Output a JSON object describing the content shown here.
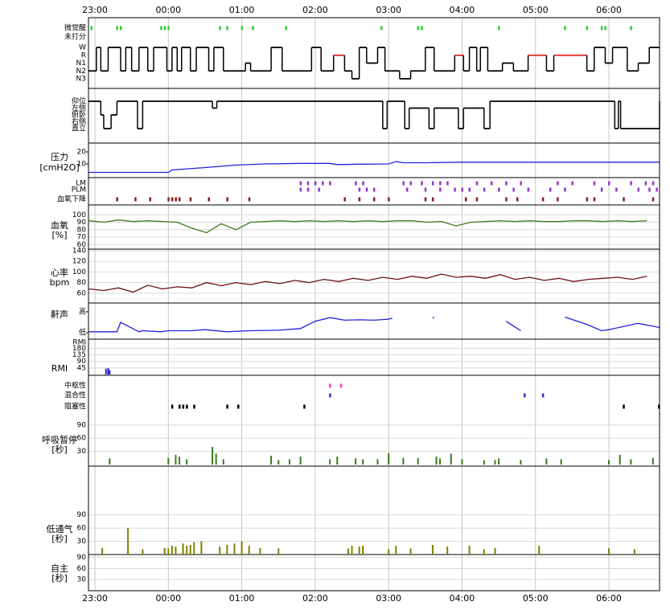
{
  "chart_data": [
    {
      "type": "hypnogram",
      "xlim": [
        -0.088,
        7.69
      ],
      "xticks": [
        {
          "value": 0,
          "label": "23:00"
        },
        {
          "value": 1,
          "label": "00:00"
        },
        {
          "value": 2,
          "label": "01:00"
        },
        {
          "value": 3,
          "label": "02:00"
        },
        {
          "value": 4,
          "label": "03:00"
        },
        {
          "value": 5,
          "label": "04:00"
        },
        {
          "value": 6,
          "label": "05:00"
        },
        {
          "value": 7,
          "label": "06:00"
        }
      ],
      "event_rows": [
        {
          "name": "微觉醒",
          "color": "#33cc33",
          "x": [
            -0.05,
            0.3,
            0.35,
            0.9,
            0.95,
            1.0,
            1.7,
            1.8,
            2.0,
            2.15,
            2.6,
            3.9,
            4.4,
            4.45,
            5.5,
            6.4,
            6.7,
            6.9,
            6.95,
            7.3
          ]
        },
        {
          "name": "未打分",
          "color": "#33cc33",
          "x": []
        }
      ],
      "levels": [
        "W",
        "R",
        "N1",
        "N2",
        "N3"
      ],
      "level_colors": [
        "#000000",
        "#dd2222",
        "#000000",
        "#000000",
        "#000000"
      ],
      "x": [
        -0.088,
        0.02,
        0.08,
        0.18,
        0.35,
        0.42,
        0.5,
        0.6,
        0.72,
        0.8,
        0.98,
        1.05,
        1.12,
        1.18,
        1.3,
        1.38,
        1.55,
        1.62,
        1.75,
        2.05,
        2.12,
        2.4,
        2.55,
        2.95,
        3.08,
        3.25,
        3.4,
        3.5,
        3.6,
        3.7,
        3.85,
        3.95,
        4.15,
        4.3,
        4.5,
        4.62,
        4.9,
        5.02,
        5.1,
        5.2,
        5.25,
        5.35,
        5.55,
        5.7,
        5.9,
        6.15,
        6.25,
        6.7,
        6.8,
        6.95,
        7.05,
        7.25,
        7.4,
        7.55
      ],
      "values": [
        3,
        0,
        3,
        0,
        3,
        0,
        3,
        0,
        3,
        0,
        3,
        0,
        3,
        0,
        3,
        0,
        3,
        0,
        3,
        2,
        3,
        0,
        3,
        0,
        3,
        1,
        3,
        4,
        0,
        2,
        0,
        3,
        4,
        3,
        0,
        3,
        1,
        3,
        0,
        3,
        0,
        3,
        2,
        3,
        1,
        3,
        1,
        3,
        0,
        2,
        0,
        3,
        2,
        0
      ]
    },
    {
      "type": "step",
      "levels": [
        "仰位",
        "左侧",
        "俯卧",
        "右侧",
        "直立"
      ],
      "level_colors": [
        "#000000",
        "#000000",
        "#000000",
        "#000000",
        "#000000"
      ],
      "x": [
        -0.088,
        0.08,
        0.12,
        0.22,
        0.3,
        0.58,
        0.65,
        1.6,
        1.66,
        3.92,
        3.98,
        4.22,
        4.28,
        4.55,
        4.62,
        4.95,
        5.02,
        5.3,
        5.38,
        7.08,
        7.13,
        7.16,
        7.69
      ],
      "values": [
        0,
        2,
        4,
        2,
        0,
        4,
        0,
        1,
        0,
        4,
        0,
        4,
        1,
        4,
        1,
        4,
        1,
        4,
        0,
        4,
        0,
        4,
        0
      ]
    },
    {
      "type": "line",
      "label_lines": [
        "压力",
        "[cmH2O]"
      ],
      "color": "#2222dd",
      "ylim": [
        0,
        26
      ],
      "yticks": [
        20,
        10
      ],
      "grid": false,
      "x": [
        -0.088,
        1.0,
        1.05,
        1.5,
        1.9,
        2.3,
        2.8,
        3.2,
        3.3,
        3.6,
        4.0,
        4.1,
        4.2,
        4.5,
        5.0,
        6.0,
        7.69
      ],
      "values": [
        3,
        3,
        5,
        7,
        9,
        10,
        10.5,
        10.5,
        9.5,
        9.8,
        10,
        12,
        11,
        11,
        11.5,
        11.5,
        11.5
      ]
    },
    {
      "type": "events",
      "event_rows": [
        {
          "name": "LM",
          "color": "#9933cc",
          "x": [
            2.8,
            2.9,
            3.0,
            3.1,
            3.2,
            3.55,
            3.65,
            4.2,
            4.3,
            4.45,
            4.6,
            4.7,
            4.8,
            5.2,
            5.4,
            5.6,
            5.8,
            6.3,
            6.5,
            6.8,
            7.0,
            7.3,
            7.5,
            7.6
          ]
        },
        {
          "name": "PLM",
          "color": "#9933cc",
          "x": [
            2.8,
            2.9,
            3.05,
            3.6,
            3.7,
            3.8,
            4.25,
            4.5,
            4.7,
            4.9,
            5.0,
            5.1,
            5.3,
            5.5,
            5.7,
            5.9,
            6.2,
            6.4,
            6.9,
            7.1,
            7.4,
            7.55,
            7.65
          ]
        },
        {
          "name": "血氧下降",
          "color": "#8b1a1a",
          "x": [
            0.3,
            0.55,
            0.75,
            1.0,
            1.05,
            1.1,
            1.15,
            1.3,
            1.55,
            1.8,
            2.1,
            3.4,
            3.6,
            3.8,
            4.0,
            4.5,
            4.6,
            5.05,
            5.2,
            5.6,
            5.75,
            6.1,
            6.3,
            6.7,
            6.8,
            7.2,
            7.6
          ]
        }
      ]
    },
    {
      "type": "line",
      "label_lines": [
        "血氧",
        "[%]"
      ],
      "color": "#3a7a1a",
      "ylim": [
        56,
        110
      ],
      "yticks": [
        100,
        90,
        80,
        70,
        60
      ],
      "grid": true,
      "x": [
        -0.08,
        0.12,
        0.32,
        0.52,
        0.72,
        0.92,
        1.12,
        1.32,
        1.52,
        1.72,
        1.92,
        2.12,
        2.32,
        2.52,
        2.72,
        2.92,
        3.12,
        3.32,
        3.52,
        3.72,
        3.92,
        4.12,
        4.32,
        4.52,
        4.72,
        4.92,
        5.12,
        5.32,
        5.52,
        5.72,
        5.92,
        6.12,
        6.32,
        6.52,
        6.72,
        6.92,
        7.12,
        7.32,
        7.52
      ],
      "values": [
        92,
        90,
        93,
        91,
        92,
        91,
        90,
        82,
        76,
        88,
        80,
        90,
        91,
        92,
        91,
        92,
        91,
        92,
        91,
        92,
        91,
        92,
        92,
        90,
        91,
        85,
        90,
        91,
        92,
        91,
        92,
        91,
        91,
        92,
        92,
        91,
        92,
        91,
        92
      ]
    },
    {
      "type": "line",
      "label_lines": [
        "心率",
        "bpm"
      ],
      "color": "#6b1010",
      "ylim": [
        43,
        140
      ],
      "yticks": [
        140,
        120,
        100,
        80,
        60
      ],
      "grid": true,
      "x": [
        -0.08,
        0.12,
        0.32,
        0.52,
        0.72,
        0.92,
        1.12,
        1.32,
        1.52,
        1.72,
        1.92,
        2.12,
        2.32,
        2.52,
        2.72,
        2.92,
        3.12,
        3.32,
        3.52,
        3.72,
        3.92,
        4.12,
        4.32,
        4.52,
        4.72,
        4.92,
        5.12,
        5.32,
        5.52,
        5.72,
        5.92,
        6.12,
        6.32,
        6.52,
        6.72,
        6.92,
        7.12,
        7.32,
        7.52
      ],
      "values": [
        68,
        65,
        70,
        62,
        75,
        68,
        72,
        70,
        80,
        74,
        80,
        76,
        82,
        78,
        84,
        80,
        86,
        82,
        88,
        84,
        90,
        86,
        92,
        88,
        96,
        90,
        92,
        88,
        95,
        86,
        90,
        84,
        88,
        82,
        86,
        88,
        90,
        86,
        92
      ]
    },
    {
      "type": "line",
      "label_lines": [
        "鼾声"
      ],
      "color": "#2222dd",
      "ylim": [
        -0.15,
        1.15
      ],
      "yticks": [
        {
          "value": 1,
          "label": "高"
        },
        {
          "value": 0,
          "label": "低"
        }
      ],
      "grid": false,
      "x": [
        -0.08,
        0.3,
        0.35,
        0.6,
        0.65,
        0.9,
        1.0,
        1.3,
        1.5,
        1.8,
        2.1,
        2.5,
        2.8,
        3.0,
        3.2,
        3.4,
        3.6,
        3.8,
        4.0,
        4.05,
        4.3,
        4.6,
        4.62,
        5.0,
        5.6,
        5.8,
        6.0,
        6.4,
        6.7,
        6.9,
        7.0,
        7.4,
        7.69
      ],
      "values": [
        0.05,
        0.05,
        0.5,
        0.05,
        0.1,
        0.05,
        0.1,
        0.1,
        0.15,
        0.05,
        0.1,
        0.12,
        0.2,
        0.55,
        0.72,
        0.6,
        0.62,
        0.6,
        0.65,
        0.7,
        null,
        0.7,
        0.75,
        null,
        0.55,
        0.1,
        null,
        0.75,
        0.4,
        0.1,
        0.15,
        0.45,
        0.25
      ]
    },
    {
      "type": "bar",
      "label_lines": [
        "RMI"
      ],
      "scale_label": "RMI",
      "color": "#2222dd",
      "ylim": [
        0,
        232
      ],
      "yticks": [
        180,
        135,
        90,
        45
      ],
      "grid": true,
      "x": [
        0.15,
        0.18,
        0.2
      ],
      "values": [
        40,
        45,
        30
      ]
    },
    {
      "type": "bar",
      "label_lines": [
        "呼吸暂停",
        "[秒]"
      ],
      "color": "#3a7a1a",
      "event_rows": [
        {
          "name": "中枢性",
          "color": "#ff33cc",
          "x": [
            3.2,
            3.35
          ]
        },
        {
          "name": "混合性",
          "color": "#3333cc",
          "x": [
            3.2,
            5.85,
            6.1
          ]
        },
        {
          "name": "阻塞性",
          "color": "#000000",
          "x": [
            1.05,
            1.15,
            1.2,
            1.25,
            1.35,
            1.8,
            1.95,
            2.85,
            7.2,
            7.68
          ]
        }
      ],
      "ylim": [
        0,
        106
      ],
      "yticks": [
        90,
        60,
        30
      ],
      "grid": true,
      "x": [
        0.2,
        1.0,
        1.1,
        1.15,
        1.25,
        1.6,
        1.65,
        1.75,
        2.4,
        2.5,
        2.65,
        2.8,
        3.2,
        3.3,
        3.55,
        3.65,
        3.85,
        4.0,
        4.2,
        4.4,
        4.65,
        4.7,
        4.85,
        5.0,
        5.3,
        5.45,
        5.5,
        5.8,
        6.15,
        6.35,
        7.0,
        7.15,
        7.3,
        7.6
      ],
      "values": [
        14,
        15,
        22,
        18,
        12,
        40,
        25,
        12,
        20,
        10,
        12,
        18,
        12,
        18,
        14,
        12,
        12,
        26,
        15,
        15,
        18,
        14,
        25,
        12,
        10,
        10,
        14,
        10,
        14,
        12,
        10,
        22,
        12,
        15
      ]
    },
    {
      "type": "bar",
      "label_lines": [
        "低通气",
        "[秒]"
      ],
      "color": "#808000",
      "ylim": [
        0,
        164
      ],
      "yticks": [
        90,
        60,
        30
      ],
      "grid": true,
      "x": [
        0.1,
        0.45,
        0.65,
        0.95,
        1.0,
        1.05,
        1.1,
        1.2,
        1.25,
        1.3,
        1.35,
        1.45,
        1.7,
        1.8,
        1.9,
        2.0,
        2.1,
        2.25,
        2.5,
        3.45,
        3.5,
        3.6,
        3.65,
        4.0,
        4.1,
        4.3,
        4.6,
        4.8,
        5.1,
        5.3,
        5.45,
        6.05,
        7.0,
        7.35
      ],
      "values": [
        15,
        60,
        12,
        15,
        14,
        20,
        18,
        25,
        20,
        22,
        28,
        30,
        18,
        22,
        25,
        30,
        20,
        15,
        14,
        14,
        20,
        18,
        20,
        12,
        20,
        14,
        22,
        18,
        20,
        12,
        15,
        20,
        14,
        12
      ]
    },
    {
      "type": "bar",
      "label_lines": [
        "自主",
        "[秒]"
      ],
      "color": "#808000",
      "ylim": [
        0,
        98
      ],
      "yticks": [
        90,
        60,
        30
      ],
      "grid": true
    }
  ]
}
